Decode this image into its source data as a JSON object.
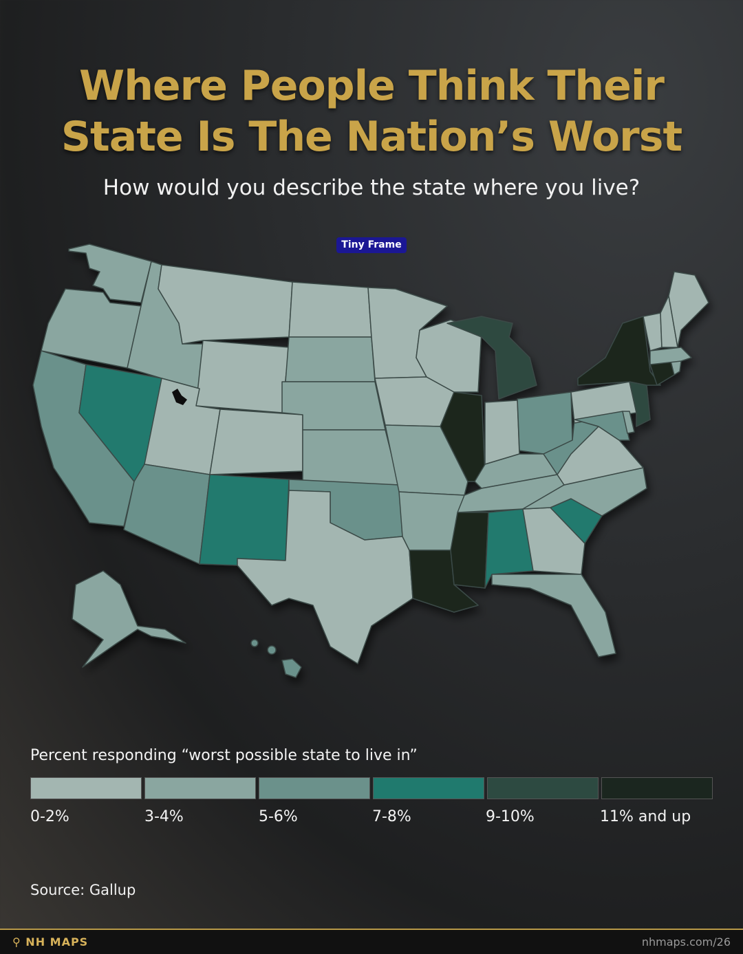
{
  "title_line1": "Where People Think Their",
  "title_line2": "State Is The Nation’s Worst",
  "subtitle": "How would you describe the state where you live?",
  "badge": "Tiny Frame",
  "legend": {
    "title": "Percent responding “worst possible state to live in”",
    "bins": [
      {
        "label": "0-2%",
        "color": "#a3b6b1"
      },
      {
        "label": "3-4%",
        "color": "#8aa6a0"
      },
      {
        "label": "5-6%",
        "color": "#6b918b"
      },
      {
        "label": "7-8%",
        "color": "#207a6e"
      },
      {
        "label": "9-10%",
        "color": "#2d4a41"
      },
      {
        "label": "11% and up",
        "color": "#1b261f"
      }
    ]
  },
  "source": "Source: Gallup",
  "footer": {
    "brand": "NH MAPS",
    "url": "nhmaps.com/26"
  },
  "map_data": {
    "WA": "3-4%",
    "OR": "3-4%",
    "CA": "5-6%",
    "NV": "7-8%",
    "ID": "3-4%",
    "MT": "0-2%",
    "WY": "0-2%",
    "UT": "0-2%",
    "AZ": "5-6%",
    "NM": "7-8%",
    "CO": "0-2%",
    "ND": "0-2%",
    "SD": "3-4%",
    "NE": "3-4%",
    "KS": "3-4%",
    "OK": "5-6%",
    "TX": "0-2%",
    "MN": "0-2%",
    "IA": "0-2%",
    "MO": "3-4%",
    "AR": "3-4%",
    "LA": "11% and up",
    "WI": "0-2%",
    "IL": "11% and up",
    "MI": "9-10%",
    "IN": "0-2%",
    "OH": "5-6%",
    "KY": "3-4%",
    "TN": "3-4%",
    "MS": "11% and up",
    "AL": "7-8%",
    "GA": "0-2%",
    "FL": "3-4%",
    "SC": "7-8%",
    "NC": "3-4%",
    "VA": "0-2%",
    "WV": "5-6%",
    "PA": "0-2%",
    "NY": "11% and up",
    "VT": "0-2%",
    "NH": "0-2%",
    "ME": "0-2%",
    "MA": "3-4%",
    "CT": "11% and up",
    "RI": "3-4%",
    "NJ": "9-10%",
    "DE": "3-4%",
    "MD": "5-6%",
    "AK": "3-4%",
    "HI": "5-6%"
  }
}
